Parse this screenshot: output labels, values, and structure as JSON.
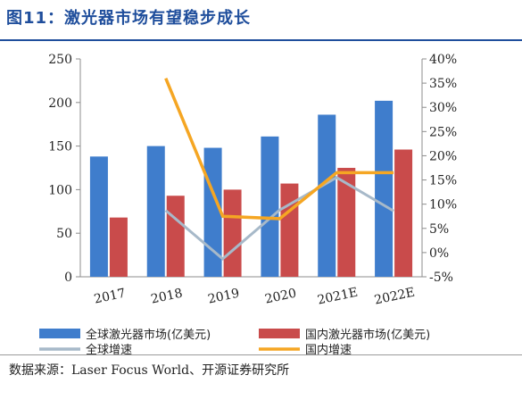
{
  "figure": {
    "title": "图11：激光器市场有望稳步成长",
    "source": "数据来源：Laser Focus World、开源证券研究所"
  },
  "colors": {
    "global_bar": "#3f7dcc",
    "domestic_bar": "#c94b4b",
    "global_growth": "#a7b9c9",
    "domestic_growth": "#f5a623",
    "title": "#1f4e9c"
  },
  "chart_data": {
    "type": "bar",
    "categories": [
      "2017",
      "2018",
      "2019",
      "2020",
      "2021E",
      "2022E"
    ],
    "series": [
      {
        "name": "全球激光器市场(亿美元)",
        "kind": "bar",
        "axis": "left",
        "values": [
          138,
          150,
          148,
          161,
          186,
          202
        ]
      },
      {
        "name": "国内激光器市场(亿美元)",
        "kind": "bar",
        "axis": "left",
        "values": [
          68,
          93,
          100,
          107,
          125,
          146
        ]
      },
      {
        "name": "全球增速",
        "kind": "line",
        "axis": "right",
        "values": [
          null,
          8.7,
          -1.3,
          8.8,
          15.5,
          8.6
        ]
      },
      {
        "name": "国内增速",
        "kind": "line",
        "axis": "right",
        "values": [
          null,
          36.0,
          7.5,
          7.0,
          16.5,
          16.5
        ]
      }
    ],
    "y_left": {
      "ylim": [
        0,
        250
      ],
      "ticks": [
        "0",
        "50",
        "100",
        "150",
        "200",
        "250"
      ]
    },
    "y_right": {
      "ylim": [
        -5,
        40
      ],
      "ticks": [
        "-5%",
        "0%",
        "5%",
        "10%",
        "15%",
        "20%",
        "25%",
        "30%",
        "35%",
        "40%"
      ]
    },
    "legend_position": "bottom",
    "grid": false
  }
}
